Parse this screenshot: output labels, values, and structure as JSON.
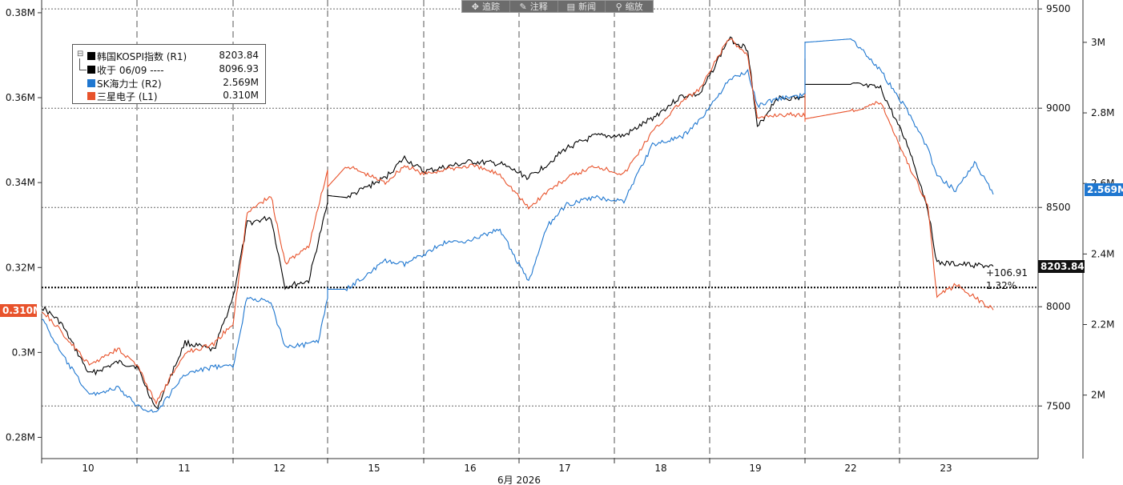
{
  "toolbar": {
    "items": [
      {
        "label": "追踪",
        "icon": "crosshair-icon",
        "glyph": "✥"
      },
      {
        "label": "注释",
        "icon": "pencil-icon",
        "glyph": "✎"
      },
      {
        "label": "新闻",
        "icon": "news-icon",
        "glyph": "▤"
      },
      {
        "label": "缩放",
        "icon": "zoom-icon",
        "glyph": "⚲"
      }
    ]
  },
  "legend": {
    "rows": [
      {
        "name": "韩国KOSPI指数 (R1)",
        "value": "8203.84",
        "color": "#000000"
      },
      {
        "name": "收于 06/09 ----",
        "value": "8096.93",
        "color": "#000000"
      },
      {
        "name": "SK海力士 (R2)",
        "value": "2.569M",
        "color": "#1f77d0"
      },
      {
        "name": "三星电子 (L1)",
        "value": "0.310M",
        "color": "#e8532c"
      }
    ]
  },
  "tags": {
    "samsung_last": "0.310M",
    "kospi_last": "8203.84",
    "skhynix_last": "2.569M"
  },
  "annotation": {
    "change_points": "+106.91",
    "change_pct": "1.32%"
  },
  "chart_data": {
    "type": "line",
    "xlabel": "6月 2026",
    "x_ticks": [
      "10",
      "11",
      "12",
      "15",
      "16",
      "17",
      "18",
      "19",
      "22",
      "23"
    ],
    "left_axis": {
      "series": "三星电子 (L1)",
      "ylim": [
        0.275,
        0.383
      ],
      "ticks": [
        "0.28M",
        "0.3M",
        "0.32M",
        "0.34M",
        "0.36M",
        "0.38M"
      ],
      "tick_values": [
        0.28,
        0.3,
        0.32,
        0.34,
        0.36,
        0.38
      ]
    },
    "right_axis_1": {
      "series": "韩国KOSPI指数 (R1)",
      "ylim": [
        7235,
        9545
      ],
      "ticks": [
        "7500",
        "8000",
        "8500",
        "9000",
        "9500"
      ],
      "tick_values": [
        7500,
        8000,
        8500,
        9000,
        9500
      ]
    },
    "right_axis_2": {
      "series": "SK海力士 (R2)",
      "ylim": [
        1.82,
        3.12
      ],
      "ticks": [
        "2M",
        "2.2M",
        "2.4M",
        "2.6M",
        "2.8M",
        "3M"
      ],
      "tick_values": [
        2.0,
        2.2,
        2.4,
        2.6,
        2.8,
        3.0
      ]
    },
    "reference_line": {
      "label": "收于 06/09",
      "value": 8096.93,
      "axis": "right_axis_1"
    },
    "series": [
      {
        "name": "韩国KOSPI指数 (R1)",
        "axis": "right_axis_1",
        "color": "#000000",
        "values": [
          [
            9.5,
            8000
          ],
          [
            9.7,
            7920
          ],
          [
            10.0,
            7660
          ],
          [
            10.3,
            7720
          ],
          [
            10.5,
            7700
          ],
          [
            10.7,
            7480
          ],
          [
            11.0,
            7820
          ],
          [
            11.3,
            7780
          ],
          [
            11.5,
            8050
          ],
          [
            11.65,
            8420
          ],
          [
            11.9,
            8450
          ],
          [
            12.05,
            8100
          ],
          [
            12.3,
            8130
          ],
          [
            12.6,
            8520
          ],
          [
            12.8,
            8580
          ],
          [
            13.1,
            8560
          ],
          [
            14.7,
            8550
          ],
          [
            15.1,
            8650
          ],
          [
            15.3,
            8750
          ],
          [
            15.5,
            8680
          ],
          [
            15.7,
            8700
          ],
          [
            16.0,
            8730
          ],
          [
            16.3,
            8720
          ],
          [
            16.6,
            8650
          ],
          [
            16.8,
            8720
          ],
          [
            17.0,
            8800
          ],
          [
            17.3,
            8860
          ],
          [
            17.6,
            8860
          ],
          [
            17.9,
            8950
          ],
          [
            18.2,
            9060
          ],
          [
            18.4,
            9070
          ],
          [
            18.7,
            9350
          ],
          [
            18.9,
            9300
          ],
          [
            19.0,
            8900
          ],
          [
            19.2,
            9050
          ],
          [
            19.5,
            9050
          ],
          [
            19.7,
            9000
          ],
          [
            19.9,
            9250
          ],
          [
            20.1,
            9200
          ],
          [
            20.3,
            9150
          ],
          [
            20.4,
            9120
          ],
          [
            22.0,
            9120
          ],
          [
            22.3,
            9100
          ],
          [
            22.6,
            8800
          ],
          [
            22.8,
            8500
          ],
          [
            22.9,
            8220
          ],
          [
            23.5,
            8203.84
          ]
        ]
      },
      {
        "name": "SK海力士 (R2)",
        "axis": "right_axis_2",
        "color": "#1f77d0",
        "values": [
          [
            9.5,
            2.22
          ],
          [
            9.7,
            2.12
          ],
          [
            10.0,
            2.0
          ],
          [
            10.3,
            2.02
          ],
          [
            10.5,
            1.97
          ],
          [
            10.7,
            1.95
          ],
          [
            11.0,
            2.06
          ],
          [
            11.3,
            2.08
          ],
          [
            11.5,
            2.08
          ],
          [
            11.65,
            2.28
          ],
          [
            11.9,
            2.26
          ],
          [
            12.05,
            2.14
          ],
          [
            12.2,
            2.14
          ],
          [
            12.4,
            2.15
          ],
          [
            12.6,
            2.28
          ],
          [
            12.8,
            2.3
          ],
          [
            13.1,
            2.3
          ],
          [
            14.7,
            2.3
          ],
          [
            15.1,
            2.38
          ],
          [
            15.3,
            2.37
          ],
          [
            15.5,
            2.4
          ],
          [
            15.7,
            2.43
          ],
          [
            16.0,
            2.44
          ],
          [
            16.3,
            2.47
          ],
          [
            16.6,
            2.32
          ],
          [
            16.8,
            2.48
          ],
          [
            17.0,
            2.54
          ],
          [
            17.3,
            2.56
          ],
          [
            17.6,
            2.55
          ],
          [
            17.9,
            2.71
          ],
          [
            18.2,
            2.73
          ],
          [
            18.4,
            2.78
          ],
          [
            18.7,
            2.89
          ],
          [
            18.9,
            2.92
          ],
          [
            19.0,
            2.82
          ],
          [
            19.2,
            2.84
          ],
          [
            19.5,
            2.85
          ],
          [
            19.7,
            2.86
          ],
          [
            19.9,
            2.96
          ],
          [
            20.1,
            2.98
          ],
          [
            20.3,
            2.99
          ],
          [
            20.4,
            3.0
          ],
          [
            22.0,
            3.01
          ],
          [
            22.3,
            2.92
          ],
          [
            22.6,
            2.8
          ],
          [
            22.8,
            2.7
          ],
          [
            22.9,
            2.62
          ],
          [
            23.1,
            2.58
          ],
          [
            23.3,
            2.66
          ],
          [
            23.5,
            2.569
          ]
        ]
      },
      {
        "name": "三星电子 (L1)",
        "axis": "left_axis",
        "color": "#e8532c",
        "values": [
          [
            9.5,
            0.31
          ],
          [
            9.7,
            0.305
          ],
          [
            10.0,
            0.297
          ],
          [
            10.3,
            0.301
          ],
          [
            10.5,
            0.297
          ],
          [
            10.7,
            0.288
          ],
          [
            11.0,
            0.3
          ],
          [
            11.3,
            0.302
          ],
          [
            11.5,
            0.307
          ],
          [
            11.65,
            0.333
          ],
          [
            11.9,
            0.337
          ],
          [
            12.05,
            0.321
          ],
          [
            12.3,
            0.325
          ],
          [
            12.6,
            0.343
          ],
          [
            12.8,
            0.34
          ],
          [
            13.1,
            0.339
          ],
          [
            14.7,
            0.344
          ],
          [
            15.1,
            0.34
          ],
          [
            15.3,
            0.344
          ],
          [
            15.5,
            0.342
          ],
          [
            15.7,
            0.343
          ],
          [
            16.0,
            0.344
          ],
          [
            16.3,
            0.342
          ],
          [
            16.6,
            0.334
          ],
          [
            16.8,
            0.338
          ],
          [
            17.0,
            0.341
          ],
          [
            17.3,
            0.344
          ],
          [
            17.6,
            0.342
          ],
          [
            17.9,
            0.352
          ],
          [
            18.2,
            0.359
          ],
          [
            18.4,
            0.362
          ],
          [
            18.7,
            0.374
          ],
          [
            18.9,
            0.37
          ],
          [
            19.0,
            0.355
          ],
          [
            19.2,
            0.356
          ],
          [
            19.5,
            0.356
          ],
          [
            19.7,
            0.354
          ],
          [
            19.9,
            0.361
          ],
          [
            20.1,
            0.358
          ],
          [
            20.3,
            0.357
          ],
          [
            20.4,
            0.355
          ],
          [
            22.0,
            0.357
          ],
          [
            22.3,
            0.359
          ],
          [
            22.6,
            0.344
          ],
          [
            22.8,
            0.335
          ],
          [
            22.9,
            0.313
          ],
          [
            23.1,
            0.316
          ],
          [
            23.3,
            0.313
          ],
          [
            23.5,
            0.31
          ]
        ]
      }
    ],
    "grid": true,
    "legend_position": "top-left"
  }
}
